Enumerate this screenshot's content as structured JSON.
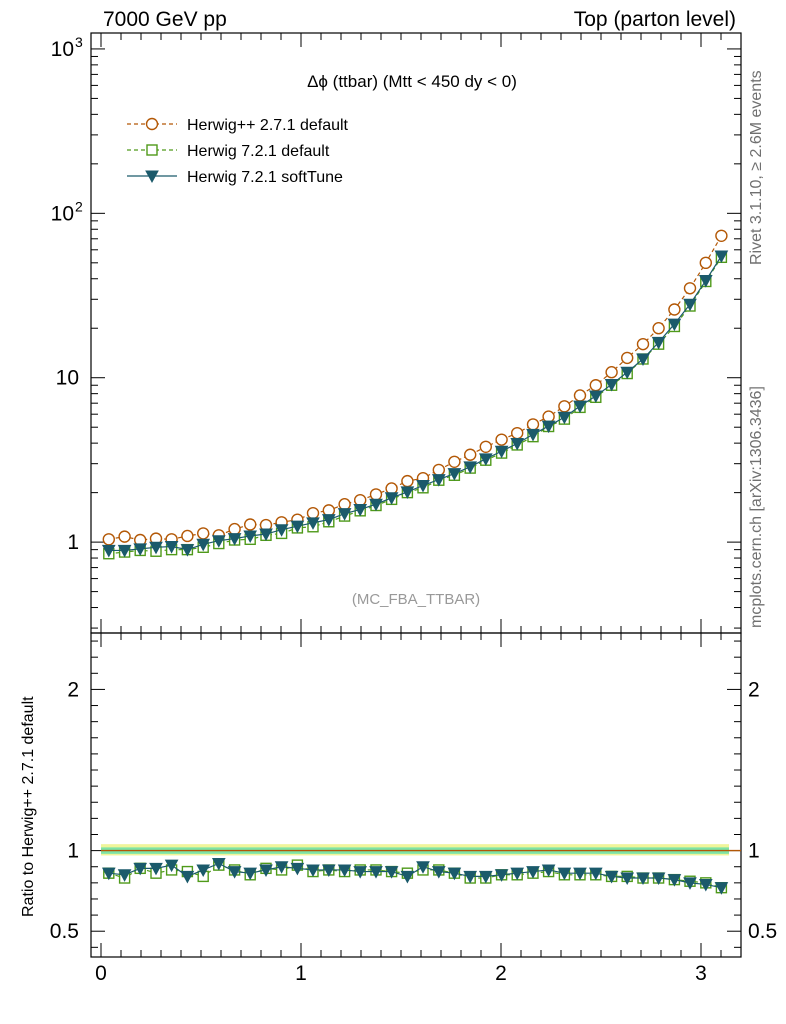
{
  "header": {
    "left": "7000 GeV pp",
    "right": "Top (parton level)"
  },
  "side_labels": {
    "rivet": "Rivet 3.1.10, ≥ 2.6M events",
    "mcplots": "mcplots.cern.ch [arXiv:1306.3436]"
  },
  "watermark": "(MC_FBA_TTBAR)",
  "plot_title": "Δϕ (ttbar) (Mtt < 450 dy < 0)",
  "ratio_ylabel": "Ratio to Herwig++ 2.7.1 default",
  "colors": {
    "herwigpp": "#b35806",
    "herwig721": "#4f9a1a",
    "softtune": "#1b5a6b",
    "band_inner": "#7de3a6",
    "band_outer": "#f0f59a"
  },
  "chart_data": [
    {
      "type": "line",
      "name": "main",
      "yscale": "log",
      "xlim": [
        -0.05,
        3.2
      ],
      "ylim": [
        0.28,
        1250
      ],
      "y_ticks": [
        {
          "value": 1,
          "label": "1"
        },
        {
          "value": 10,
          "label": "10"
        },
        {
          "value": 100,
          "label": "10",
          "sup": "2"
        },
        {
          "value": 1000,
          "label": "10",
          "sup": "3"
        }
      ],
      "legend_position": "top-left",
      "x": [
        0.039,
        0.118,
        0.196,
        0.275,
        0.353,
        0.432,
        0.511,
        0.589,
        0.668,
        0.746,
        0.825,
        0.903,
        0.982,
        1.06,
        1.139,
        1.218,
        1.296,
        1.375,
        1.453,
        1.532,
        1.61,
        1.689,
        1.767,
        1.846,
        1.924,
        2.003,
        2.081,
        2.16,
        2.238,
        2.317,
        2.395,
        2.474,
        2.553,
        2.631,
        2.71,
        2.788,
        2.867,
        2.945,
        3.024,
        3.102
      ],
      "series": [
        {
          "name": "Herwig++ 2.7.1 default",
          "marker": "open-circle",
          "line": "dashed",
          "values": [
            1.04,
            1.08,
            1.03,
            1.05,
            1.04,
            1.09,
            1.13,
            1.1,
            1.2,
            1.28,
            1.27,
            1.32,
            1.37,
            1.5,
            1.56,
            1.7,
            1.8,
            1.95,
            2.12,
            2.35,
            2.45,
            2.75,
            3.08,
            3.4,
            3.8,
            4.2,
            4.6,
            5.2,
            5.8,
            6.7,
            7.8,
            9.0,
            10.8,
            13.2,
            16.0,
            20.0,
            26.0,
            35.0,
            50.0,
            73.0
          ]
        },
        {
          "name": "Herwig 7.2.1 default",
          "marker": "open-square",
          "line": "dashed",
          "values": [
            0.85,
            0.87,
            0.89,
            0.88,
            0.9,
            0.9,
            0.93,
            0.98,
            1.03,
            1.04,
            1.1,
            1.13,
            1.22,
            1.24,
            1.33,
            1.44,
            1.55,
            1.67,
            1.82,
            2.0,
            2.14,
            2.38,
            2.55,
            2.82,
            3.15,
            3.48,
            3.9,
            4.38,
            5.05,
            5.6,
            6.6,
            7.6,
            9.0,
            10.6,
            13.0,
            16.0,
            20.5,
            27.3,
            38.5,
            54.0
          ]
        },
        {
          "name": "Herwig 7.2.1 softTune",
          "marker": "filled-triangle-down",
          "line": "solid",
          "values": [
            0.89,
            0.89,
            0.91,
            0.93,
            0.94,
            0.9,
            0.97,
            1.02,
            1.05,
            1.09,
            1.12,
            1.19,
            1.25,
            1.31,
            1.37,
            1.49,
            1.58,
            1.7,
            1.86,
            2.02,
            2.21,
            2.4,
            2.61,
            2.87,
            3.21,
            3.57,
            3.98,
            4.52,
            5.08,
            5.75,
            6.72,
            7.74,
            9.1,
            10.8,
            13.0,
            16.4,
            21.2,
            28.0,
            39.0,
            55.0
          ]
        }
      ]
    },
    {
      "type": "line",
      "name": "ratio",
      "xlabel": "",
      "ylabel": "Ratio to Herwig++ 2.7.1 default",
      "xlim": [
        -0.05,
        3.2
      ],
      "ylim": [
        0.34,
        2.35
      ],
      "y_ticks": [
        {
          "value": 0.5,
          "label": "0.5"
        },
        {
          "value": 1,
          "label": "1"
        },
        {
          "value": 2,
          "label": "2"
        }
      ],
      "x_ticks": [
        {
          "value": 0,
          "label": "0"
        },
        {
          "value": 1,
          "label": "1"
        },
        {
          "value": 2,
          "label": "2"
        },
        {
          "value": 3,
          "label": "3"
        }
      ],
      "reference": 1.0,
      "band_inner": [
        0.98,
        1.02
      ],
      "band_outer": [
        0.97,
        1.04
      ],
      "series": [
        {
          "name": "Herwig 7.2.1 default",
          "values": [
            0.86,
            0.83,
            0.89,
            0.86,
            0.88,
            0.87,
            0.84,
            0.91,
            0.88,
            0.85,
            0.89,
            0.88,
            0.91,
            0.87,
            0.88,
            0.87,
            0.88,
            0.88,
            0.87,
            0.86,
            0.88,
            0.88,
            0.86,
            0.83,
            0.83,
            0.85,
            0.85,
            0.86,
            0.87,
            0.85,
            0.85,
            0.85,
            0.84,
            0.84,
            0.83,
            0.83,
            0.82,
            0.81,
            0.8,
            0.77
          ]
        },
        {
          "name": "Herwig 7.2.1 softTune",
          "values": [
            0.86,
            0.85,
            0.89,
            0.89,
            0.91,
            0.84,
            0.88,
            0.92,
            0.87,
            0.86,
            0.88,
            0.9,
            0.89,
            0.88,
            0.88,
            0.88,
            0.87,
            0.87,
            0.87,
            0.84,
            0.9,
            0.87,
            0.86,
            0.84,
            0.84,
            0.85,
            0.86,
            0.87,
            0.88,
            0.86,
            0.86,
            0.86,
            0.84,
            0.83,
            0.83,
            0.83,
            0.82,
            0.8,
            0.79,
            0.77
          ]
        }
      ]
    }
  ]
}
